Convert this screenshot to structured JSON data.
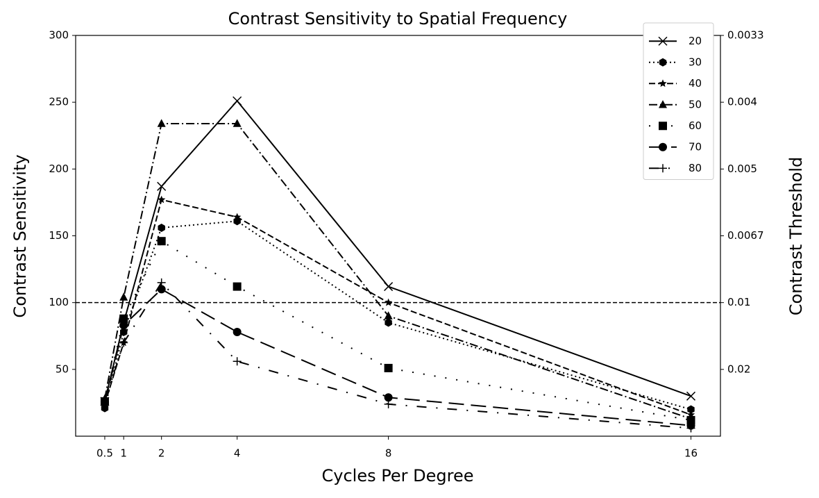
{
  "chart_data": {
    "type": "line",
    "title": "Contrast Sensitivity to Spatial Frequency",
    "x_label": "Cycles Per Degree",
    "y_label": "Contrast Sensitivity",
    "y2_label": "Contrast Threshold",
    "x": [
      0.5,
      1,
      2,
      4,
      8,
      16
    ],
    "xlim": [
      -0.27,
      16.78
    ],
    "xticks": [
      0.5,
      1,
      2,
      4,
      8,
      16
    ],
    "ylim": [
      0,
      300
    ],
    "yticks": [
      50,
      100,
      150,
      200,
      250,
      300
    ],
    "y2scale": "reciprocal",
    "y2ticks": [
      {
        "value": 0.0033333,
        "label": "0.0033"
      },
      0.004,
      0.005,
      {
        "value": 0.0066667,
        "label": "0.0067"
      },
      0.01,
      0.02
    ],
    "hline": 100,
    "legend": "upper right",
    "series": [
      {
        "name": "20",
        "color": "#000000",
        "linestyle": "solid",
        "marker": "x",
        "values": [
          26,
          85,
          187,
          251,
          112,
          30
        ]
      },
      {
        "name": "30",
        "color": "#000000",
        "linestyle": "dotted",
        "marker": "hexagon",
        "values": [
          21,
          78,
          156,
          161,
          85,
          20
        ]
      },
      {
        "name": "40",
        "color": "#000000",
        "linestyle": "dashed",
        "marker": "star",
        "values": [
          24,
          70,
          177,
          164,
          100,
          16
        ]
      },
      {
        "name": "50",
        "color": "#000000",
        "linestyle": "dashdot",
        "marker": "triangle",
        "values": [
          28,
          104,
          234,
          234,
          90,
          13
        ]
      },
      {
        "name": "60",
        "color": "#000000",
        "linestyle": "loosely dotted",
        "marker": "square",
        "values": [
          26,
          88,
          146,
          112,
          51,
          12
        ]
      },
      {
        "name": "70",
        "color": "#000000",
        "linestyle": "long dash",
        "marker": "circle",
        "values": [
          25,
          83,
          110,
          78,
          29,
          8
        ]
      },
      {
        "name": "80",
        "color": "#000000",
        "linestyle": "loosely dashdot",
        "marker": "plus",
        "values": [
          26,
          70,
          115,
          56,
          24,
          6
        ]
      }
    ]
  }
}
